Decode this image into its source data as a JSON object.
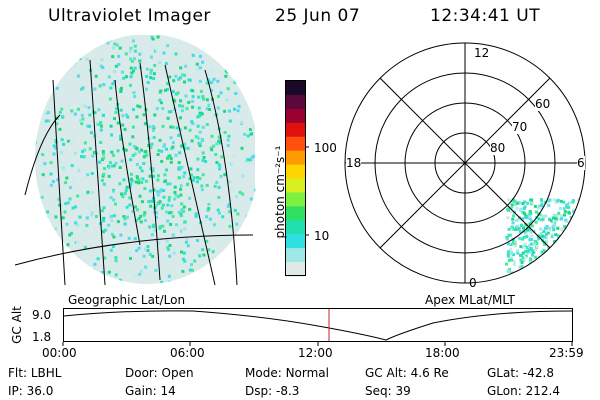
{
  "header": {
    "title": "Ultraviolet Imager",
    "date": "25 Jun 07",
    "time": "12:34:41 UT"
  },
  "colorbar": {
    "unit_label": "photon cm⁻²s⁻¹",
    "ticks": [
      "100",
      "10"
    ],
    "colors": [
      "#1a0a2a",
      "#5a0a3a",
      "#9a0030",
      "#e01010",
      "#ff5010",
      "#ff9a00",
      "#ffd500",
      "#d8f020",
      "#80f040",
      "#30e060",
      "#20e0b0",
      "#30e0e0",
      "#a0e8e8",
      "#e0e8e8"
    ]
  },
  "left_panel": {
    "label": "Geographic Lat/Lon"
  },
  "right_panel": {
    "label": "Apex MLat/MLT",
    "mlt_labels": {
      "top": "12",
      "left": "18",
      "right": "6",
      "bottom": "0"
    },
    "lat_labels": [
      "60",
      "70",
      "80"
    ]
  },
  "timeline": {
    "axis_title": "GC Alt",
    "y_ticks": [
      "9.0",
      "1.8"
    ],
    "x_ticks": [
      "00:00",
      "06:00",
      "12:00",
      "18:00",
      "23:59"
    ],
    "marker_time": "12:34",
    "marker_color": "#cc2222"
  },
  "info": {
    "row1": [
      {
        "label": "Flt:",
        "value": "LBHL"
      },
      {
        "label": "Door:",
        "value": "Open"
      },
      {
        "label": "Mode:",
        "value": "Normal"
      },
      {
        "label": "GC Alt:",
        "value": "4.6 Re"
      },
      {
        "label": "GLat:",
        "value": "-42.8"
      }
    ],
    "row2": [
      {
        "label": "IP:",
        "value": "36.0"
      },
      {
        "label": "Gain:",
        "value": "14"
      },
      {
        "label": "Dsp:",
        "value": "-8.3"
      },
      {
        "label": "Seq:",
        "value": "39"
      },
      {
        "label": "GLon:",
        "value": "212.4"
      }
    ]
  }
}
